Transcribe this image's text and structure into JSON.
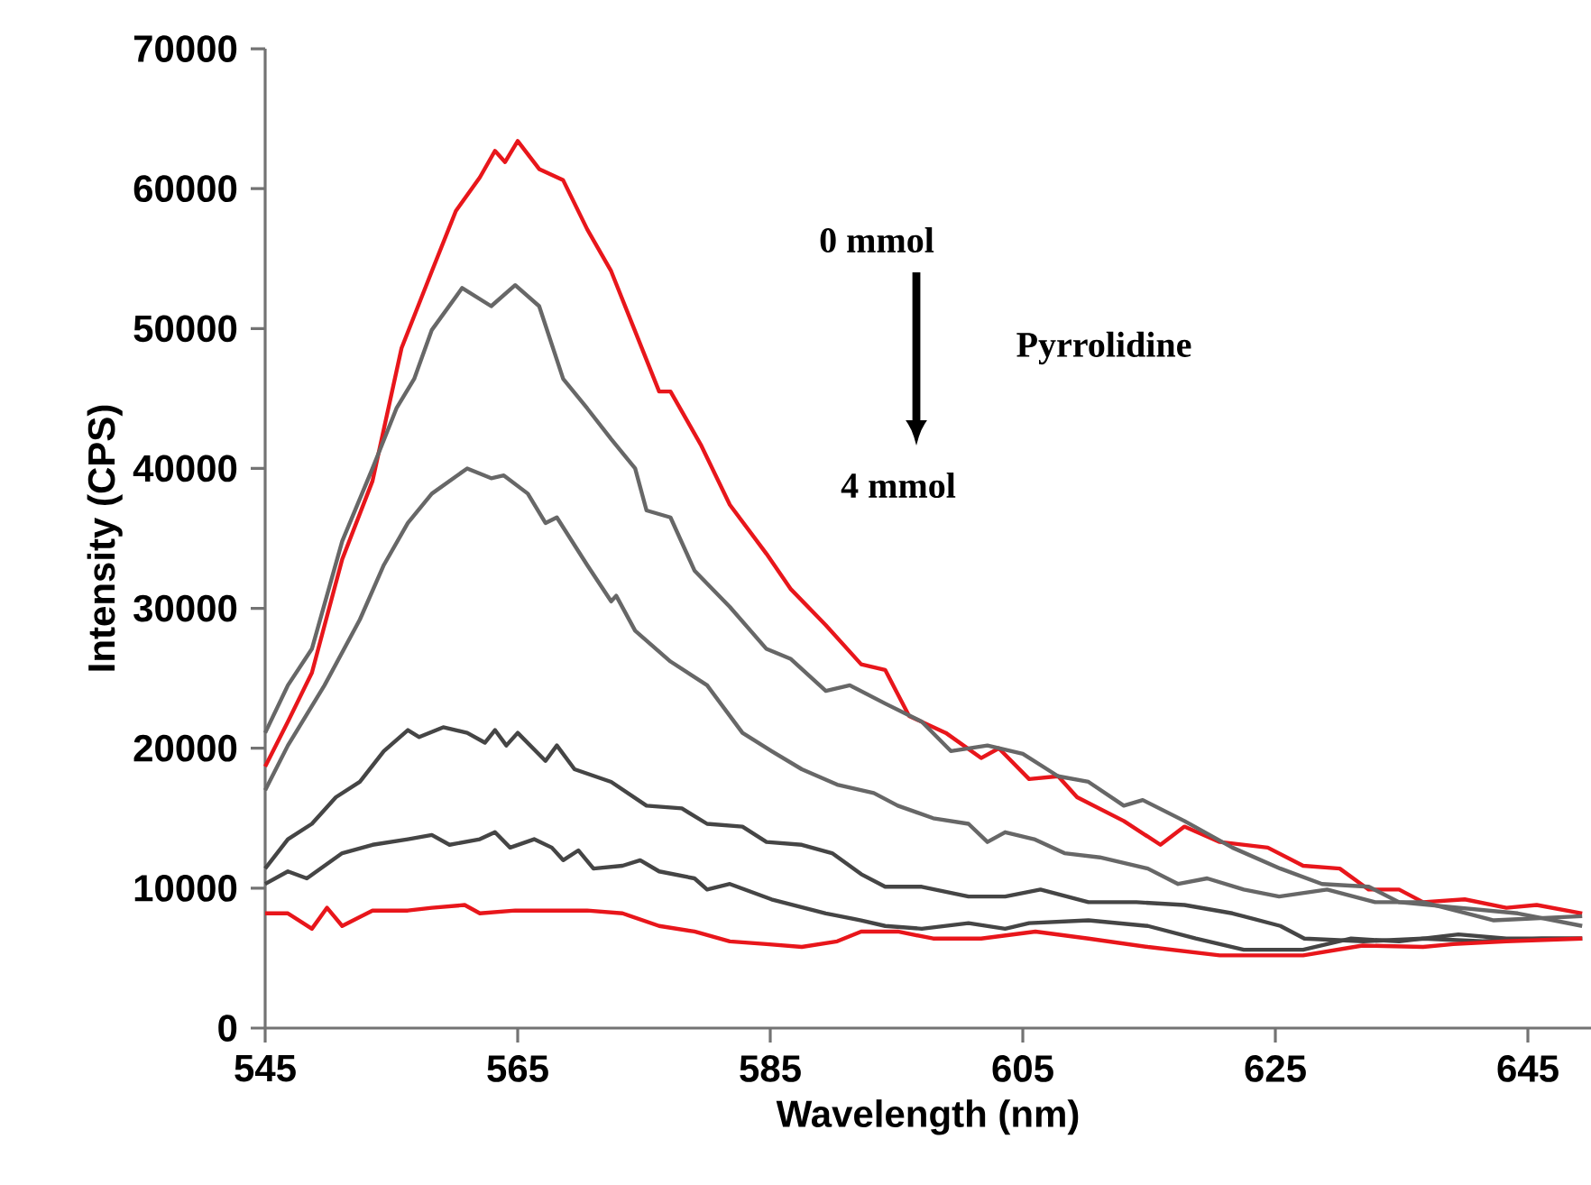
{
  "chart_data": {
    "type": "line",
    "xlabel": "Wavelength (nm)",
    "ylabel": "Intensity (CPS)",
    "xlim": [
      545,
      650
    ],
    "ylim": [
      0,
      70000
    ],
    "xticks": [
      545,
      565,
      585,
      605,
      625,
      645
    ],
    "yticks": [
      0,
      10000,
      20000,
      30000,
      40000,
      50000,
      60000,
      70000
    ],
    "annotations": [
      "0 mmol",
      "Pyrrolidine",
      "4 mmol"
    ],
    "series": [
      {
        "color": "#e8161b",
        "x": [
          545,
          546.8,
          548.7,
          551.1,
          553.5,
          555.8,
          558.2,
          560.1,
          562.0,
          563.2,
          564.0,
          565.0,
          566.7,
          568.6,
          570.5,
          572.4,
          574.3,
          576.2,
          577.1,
          579.5,
          581.8,
          584.7,
          586.6,
          589.4,
          592.2,
          594.1,
          596.0,
          598.9,
          601.7,
          603.1,
          605.5,
          607.8,
          609.3,
          613.0,
          615.9,
          617.8,
          620.6,
          624.4,
          627.2,
          630.1,
          632.4,
          634.8,
          636.7,
          640.0,
          643.3,
          645.7,
          649.3
        ],
        "values": [
          18700,
          21900,
          25400,
          33500,
          39100,
          48600,
          54100,
          58400,
          60800,
          62700,
          61900,
          63400,
          61400,
          60600,
          57100,
          54100,
          49800,
          45500,
          45500,
          41700,
          37400,
          33900,
          31400,
          28800,
          26000,
          25600,
          22300,
          21100,
          19300,
          20000,
          17800,
          18000,
          16500,
          14800,
          13100,
          14400,
          13300,
          12900,
          11600,
          11400,
          9900,
          9900,
          9000,
          9200,
          8600,
          8800,
          8200
        ]
      },
      {
        "color": "#676767",
        "x": [
          545,
          546.8,
          548.7,
          551.1,
          553.5,
          555.4,
          556.8,
          558.2,
          560.6,
          562.9,
          564.8,
          566.7,
          568.6,
          570.5,
          572.4,
          574.3,
          575.2,
          577.1,
          579.0,
          581.8,
          584.7,
          586.6,
          589.4,
          591.3,
          594.1,
          597.0,
          599.3,
          602.2,
          605.0,
          607.8,
          610.2,
          613.0,
          614.5,
          617.8,
          621.6,
          625.4,
          628.7,
          632.4,
          634.8,
          639.5,
          644.2,
          649.3
        ],
        "values": [
          21100,
          24500,
          27100,
          34800,
          40000,
          44300,
          46400,
          49900,
          52900,
          51600,
          53100,
          51600,
          46400,
          44300,
          42100,
          40000,
          37000,
          36500,
          32700,
          30100,
          27100,
          26400,
          24100,
          24500,
          23200,
          21900,
          19800,
          20200,
          19600,
          18000,
          17600,
          15900,
          16300,
          14800,
          12900,
          11400,
          10300,
          10100,
          9000,
          8600,
          8200,
          7300
        ]
      },
      {
        "color": "#676767",
        "x": [
          545,
          546.8,
          549.7,
          552.5,
          554.4,
          556.3,
          558.2,
          561.0,
          562.9,
          563.9,
          565.8,
          567.2,
          568.1,
          570.5,
          572.4,
          572.8,
          574.3,
          577.1,
          580.0,
          582.8,
          585.1,
          587.5,
          590.3,
          593.2,
          595.1,
          597.9,
          600.7,
          602.2,
          603.6,
          605.9,
          608.3,
          611.1,
          614.9,
          617.3,
          619.6,
          622.5,
          625.3,
          629.1,
          632.9,
          636.7,
          642.3,
          649.3
        ],
        "values": [
          17000,
          20200,
          24500,
          29200,
          33100,
          36100,
          38200,
          40000,
          39300,
          39500,
          38200,
          36100,
          36500,
          33100,
          30500,
          30900,
          28400,
          26200,
          24500,
          21100,
          19800,
          18500,
          17400,
          16800,
          15900,
          15000,
          14600,
          13300,
          14000,
          13500,
          12500,
          12200,
          11400,
          10300,
          10700,
          9900,
          9400,
          9900,
          9000,
          9000,
          7700,
          8000
        ]
      },
      {
        "color": "#454545",
        "x": [
          545,
          546.8,
          548.7,
          550.6,
          552.5,
          554.4,
          556.3,
          557.2,
          559.1,
          561.0,
          562.4,
          563.2,
          564.1,
          565.0,
          567.2,
          568.1,
          569.5,
          572.4,
          575.2,
          578.0,
          580.0,
          582.8,
          584.7,
          587.5,
          589.9,
          592.2,
          594.1,
          597.0,
          600.7,
          603.6,
          606.4,
          610.2,
          614.0,
          617.8,
          621.6,
          625.4,
          627.3,
          632.0,
          636.7,
          641.4,
          646.1,
          649.3
        ],
        "values": [
          11400,
          13500,
          14600,
          16500,
          17600,
          19800,
          21300,
          20800,
          21500,
          21100,
          20400,
          21300,
          20200,
          21100,
          19100,
          20200,
          18500,
          17600,
          15900,
          15700,
          14600,
          14400,
          13300,
          13100,
          12500,
          11000,
          10100,
          10100,
          9400,
          9400,
          9900,
          9000,
          9000,
          8800,
          8200,
          7300,
          6400,
          6200,
          6400,
          6200,
          6400,
          6400
        ]
      },
      {
        "color": "#454545",
        "x": [
          545,
          546.8,
          548.3,
          551.1,
          553.5,
          556.3,
          558.2,
          559.6,
          562.0,
          563.2,
          564.4,
          566.3,
          567.7,
          568.6,
          569.8,
          571.0,
          573.3,
          574.7,
          576.2,
          579.0,
          580.0,
          581.8,
          585.1,
          589.4,
          592.2,
          594.1,
          597.0,
          600.7,
          603.6,
          605.5,
          610.2,
          614.9,
          618.7,
          622.5,
          627.2,
          631.0,
          634.8,
          639.5,
          643.3,
          649.3
        ],
        "values": [
          10300,
          11200,
          10700,
          12500,
          13100,
          13500,
          13800,
          13100,
          13500,
          14000,
          12900,
          13500,
          12900,
          12000,
          12700,
          11400,
          11600,
          12000,
          11200,
          10700,
          9900,
          10300,
          9200,
          8200,
          7700,
          7300,
          7100,
          7500,
          7100,
          7500,
          7700,
          7300,
          6400,
          5600,
          5600,
          6400,
          6200,
          6700,
          6400,
          6400
        ]
      },
      {
        "color": "#e8161b",
        "x": [
          545,
          546.8,
          548.7,
          549.9,
          551.1,
          553.5,
          556.3,
          558.2,
          560.8,
          562.0,
          564.8,
          567.7,
          570.5,
          573.3,
          576.2,
          579.0,
          581.8,
          584.7,
          587.5,
          590.3,
          592.2,
          595.1,
          597.9,
          601.7,
          606.0,
          610.2,
          614.9,
          620.6,
          627.2,
          631.9,
          636.7,
          639.1,
          643.3,
          649.3
        ],
        "values": [
          8200,
          8200,
          7100,
          8600,
          7300,
          8400,
          8400,
          8600,
          8800,
          8200,
          8400,
          8400,
          8400,
          8200,
          7300,
          6900,
          6200,
          6000,
          5800,
          6200,
          6900,
          6900,
          6400,
          6400,
          6900,
          6400,
          5800,
          5200,
          5200,
          5900,
          5800,
          6000,
          6200,
          6400
        ]
      }
    ]
  }
}
